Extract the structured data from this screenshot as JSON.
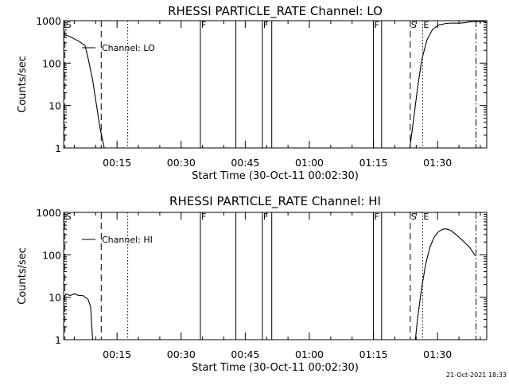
{
  "footer_timestamp": "21-Oct-2021 18:33",
  "marker_styles": {
    "S": "dashed",
    "F": "solid",
    "E": "dotted",
    "N": "dashdot"
  },
  "chart_data": [
    {
      "type": "line",
      "title": "RHESSI PARTICLE_RATE Channel: LO",
      "xlabel": "Start Time (30-Oct-11 00:02:30)",
      "ylabel": "Counts/sec",
      "y_scale": "log",
      "ylim": [
        1,
        1000
      ],
      "xlim_minutes": [
        2.5,
        101.5
      ],
      "x_tick_labels": [
        "00:15",
        "00:30",
        "00:45",
        "01:00",
        "01:15",
        "01:30"
      ],
      "x_tick_minutes": [
        15,
        30,
        45,
        60,
        75,
        90
      ],
      "y_tick_labels": [
        "1",
        "10",
        "100",
        "1000"
      ],
      "y_tick_values": [
        1,
        10,
        100,
        1000
      ],
      "legend": "Channel: LO",
      "series": [
        {
          "name": "Channel: LO",
          "segments": [
            {
              "minutes": [
                2.5,
                4,
                6,
                7.5,
                8.3,
                9.3,
                10.2,
                11,
                12
              ],
              "values": [
                480,
                420,
                330,
                260,
                120,
                40,
                10,
                3,
                1
              ]
            },
            {
              "minutes": [
                83.5,
                84.3,
                85.3,
                86.3,
                87.5,
                88.8,
                90.2,
                92,
                93.5,
                95,
                96.5,
                97.5,
                98.3,
                99.5,
                101.5
              ],
              "values": [
                1,
                4,
                25,
                120,
                350,
                620,
                790,
                860,
                880,
                870,
                900,
                940,
                960,
                960,
                960
              ]
            }
          ]
        }
      ],
      "markers": [
        {
          "minutes": 2.8,
          "label": "S",
          "style": "dashed"
        },
        {
          "minutes": 11.3,
          "label": "",
          "style": "dashed"
        },
        {
          "minutes": 17.5,
          "label": "",
          "style": "dotted"
        },
        {
          "minutes": 34.5,
          "label": "F",
          "style": "solid"
        },
        {
          "minutes": 42.8,
          "label": "",
          "style": "solid"
        },
        {
          "minutes": 49.0,
          "label": "F",
          "style": "solid"
        },
        {
          "minutes": 51.2,
          "label": "",
          "style": "solid"
        },
        {
          "minutes": 75.0,
          "label": "F",
          "style": "solid"
        },
        {
          "minutes": 76.9,
          "label": "",
          "style": "solid"
        },
        {
          "minutes": 83.6,
          "label": "S",
          "style": "dashed"
        },
        {
          "minutes": 86.5,
          "label": "E",
          "style": "dotted"
        },
        {
          "minutes": 99.0,
          "label": "",
          "style": "dashdot"
        }
      ]
    },
    {
      "type": "line",
      "title": "RHESSI PARTICLE_RATE Channel: HI",
      "xlabel": "Start Time (30-Oct-11 00:02:30)",
      "ylabel": "Counts/sec",
      "y_scale": "log",
      "ylim": [
        1,
        1000
      ],
      "xlim_minutes": [
        2.5,
        101.5
      ],
      "x_tick_labels": [
        "00:15",
        "00:30",
        "00:45",
        "01:00",
        "01:15",
        "01:30"
      ],
      "x_tick_minutes": [
        15,
        30,
        45,
        60,
        75,
        90
      ],
      "y_tick_labels": [
        "1",
        "10",
        "100",
        "1000"
      ],
      "y_tick_values": [
        1,
        10,
        100,
        1000
      ],
      "legend": "Channel: HI",
      "series": [
        {
          "name": "Channel: HI",
          "segments": [
            {
              "minutes": [
                2.5,
                3,
                4,
                5,
                6,
                7,
                7.5,
                8.2,
                8.8,
                9.1,
                9.3
              ],
              "values": [
                9,
                12,
                11,
                12,
                11,
                11,
                10,
                9,
                6,
                2,
                1
              ]
            },
            {
              "minutes": [
                84.8,
                85.3,
                86.2,
                87.2,
                88.2,
                89.2,
                90.2,
                91.2,
                92,
                93,
                94.5,
                96,
                97.5,
                98.8
              ],
              "values": [
                1,
                3,
                15,
                60,
                150,
                260,
                350,
                400,
                410,
                380,
                290,
                210,
                150,
                95
              ]
            }
          ]
        }
      ],
      "markers": [
        {
          "minutes": 2.8,
          "label": "S",
          "style": "dashed"
        },
        {
          "minutes": 11.3,
          "label": "",
          "style": "dashed"
        },
        {
          "minutes": 17.5,
          "label": "",
          "style": "dotted"
        },
        {
          "minutes": 34.5,
          "label": "F",
          "style": "solid"
        },
        {
          "minutes": 42.8,
          "label": "",
          "style": "solid"
        },
        {
          "minutes": 49.0,
          "label": "F",
          "style": "solid"
        },
        {
          "minutes": 51.2,
          "label": "",
          "style": "solid"
        },
        {
          "minutes": 75.0,
          "label": "F",
          "style": "solid"
        },
        {
          "minutes": 76.9,
          "label": "",
          "style": "solid"
        },
        {
          "minutes": 83.6,
          "label": "S",
          "style": "dashed"
        },
        {
          "minutes": 86.5,
          "label": "E",
          "style": "dotted"
        },
        {
          "minutes": 99.0,
          "label": "",
          "style": "dashdot"
        }
      ]
    }
  ]
}
